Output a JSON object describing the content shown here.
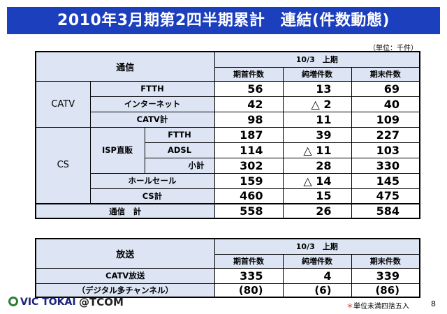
{
  "title": "2010年3月期第2四半期累計　連結(件数動態)",
  "unit": "（単位：千件）",
  "table1": {
    "corner": "通信",
    "period": "10/3　上期",
    "cols": [
      "期首件数",
      "純増件数",
      "期末件数"
    ],
    "catv_label": "CATV",
    "cs_label": "CS",
    "isp_label": "ISP直販",
    "rows": {
      "ftth": {
        "label": "FTTH",
        "v": [
          "56",
          "13",
          "69"
        ]
      },
      "internet": {
        "label": "インターネット",
        "v": [
          "42",
          "△ 2",
          "40"
        ]
      },
      "catv_total": {
        "label": "CATV計",
        "v": [
          "98",
          "11",
          "109"
        ]
      },
      "cs_ftth": {
        "label": "FTTH",
        "v": [
          "187",
          "39",
          "227"
        ]
      },
      "adsl": {
        "label": "ADSL",
        "v": [
          "114",
          "△ 11",
          "103"
        ]
      },
      "subtotal": {
        "label": "小計",
        "v": [
          "302",
          "28",
          "330"
        ]
      },
      "wholesale": {
        "label": "ホールセール",
        "v": [
          "159",
          "△ 14",
          "145"
        ]
      },
      "cs_total": {
        "label": "CS計",
        "v": [
          "460",
          "15",
          "475"
        ]
      },
      "total": {
        "label": "通信　計",
        "v": [
          "558",
          "26",
          "584"
        ]
      }
    }
  },
  "table2": {
    "corner": "放送",
    "period": "10/3　上期",
    "cols": [
      "期首件数",
      "純増件数",
      "期末件数"
    ],
    "rows": {
      "catv_broadcast": {
        "label": "CATV放送",
        "v": [
          "335",
          "4",
          "339"
        ]
      },
      "digital": {
        "label": "（デジタル多チャンネル）",
        "v": [
          "(80)",
          "(6)",
          "(86)"
        ]
      }
    }
  },
  "footer": {
    "logo1": "VIC TOKAI",
    "logo2": "@TCOM",
    "note_mark": "＊",
    "note": "単位未満四捨五入",
    "page": "8"
  }
}
